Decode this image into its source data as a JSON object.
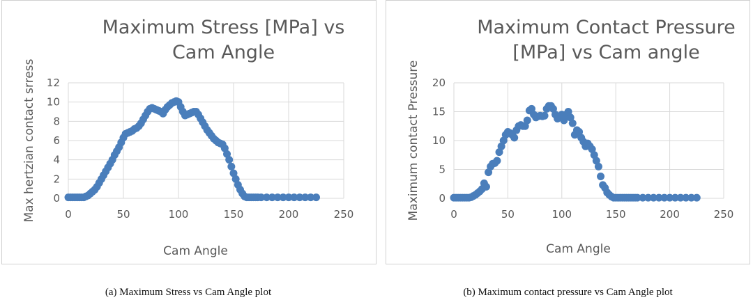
{
  "colors": {
    "marker": "#4a7ebb",
    "grid": "#d9d9d9",
    "text": "#595959"
  },
  "captions": {
    "a": "(a) Maximum Stress vs Cam Angle plot",
    "b": "(b) Maximum contact pressure vs Cam Angle plot"
  },
  "chart_data": [
    {
      "type": "scatter",
      "title": [
        "Maximum Stress [MPa] vs",
        "Cam Angle"
      ],
      "xlabel": "Cam Angle",
      "ylabel": "Max hertzian contact srress",
      "xlim": [
        0,
        250
      ],
      "ylim": [
        0,
        12
      ],
      "xticks": [
        0,
        50,
        100,
        150,
        200,
        250
      ],
      "yticks": [
        0,
        2,
        4,
        6,
        8,
        10,
        12
      ],
      "grid": true,
      "series": [
        {
          "x": [
            0,
            2,
            4,
            6,
            8,
            10,
            12,
            14,
            16,
            18,
            20,
            22,
            24,
            26,
            28,
            30,
            32,
            34,
            36,
            38,
            40,
            42,
            44,
            46,
            48,
            50,
            52,
            54,
            56,
            58,
            60,
            62,
            64,
            66,
            68,
            70,
            72,
            74,
            76,
            78,
            80,
            82,
            84,
            86,
            88,
            90,
            92,
            94,
            96,
            98,
            100,
            102,
            104,
            106,
            108,
            110,
            112,
            114,
            116,
            118,
            120,
            122,
            124,
            126,
            128,
            130,
            132,
            134,
            136,
            138,
            140,
            142,
            144,
            146,
            148,
            150,
            152,
            154,
            156,
            158,
            160,
            162,
            164,
            166,
            168,
            170,
            172,
            175,
            180,
            185,
            190,
            195,
            200,
            205,
            210,
            215,
            220,
            225
          ],
          "y": [
            0.1,
            0.1,
            0.1,
            0.1,
            0.1,
            0.1,
            0.1,
            0.1,
            0.2,
            0.3,
            0.5,
            0.7,
            0.9,
            1.2,
            1.6,
            2.0,
            2.4,
            2.8,
            3.2,
            3.6,
            4.0,
            4.5,
            4.9,
            5.3,
            5.8,
            6.3,
            6.7,
            6.8,
            6.9,
            7.0,
            7.2,
            7.3,
            7.5,
            7.8,
            8.2,
            8.6,
            9.0,
            9.3,
            9.4,
            9.3,
            9.2,
            9.1,
            9.0,
            8.8,
            9.2,
            9.5,
            9.7,
            9.9,
            10.0,
            10.1,
            10.0,
            9.5,
            9.0,
            8.6,
            8.7,
            8.8,
            8.9,
            9.0,
            9.0,
            8.7,
            8.3,
            7.9,
            7.5,
            7.1,
            6.8,
            6.5,
            6.2,
            6.0,
            5.8,
            5.7,
            5.6,
            5.2,
            4.6,
            4.0,
            3.3,
            2.6,
            2.0,
            1.4,
            0.9,
            0.5,
            0.2,
            0.1,
            0.1,
            0.1,
            0.1,
            0.1,
            0.1,
            0.1,
            0.1,
            0.1,
            0.1,
            0.1,
            0.1,
            0.1,
            0.1,
            0.1,
            0.1,
            0.1
          ]
        }
      ]
    },
    {
      "type": "scatter",
      "title": [
        "Maximum Contact Pressure",
        "[MPa] vs Cam angle"
      ],
      "xlabel": "Cam Angle",
      "ylabel": "Maximum contact Pressure",
      "xlim": [
        0,
        250
      ],
      "ylim": [
        0,
        20
      ],
      "xticks": [
        0,
        50,
        100,
        150,
        200,
        250
      ],
      "yticks": [
        0,
        5,
        10,
        15,
        20
      ],
      "grid": true,
      "series": [
        {
          "x": [
            0,
            2,
            4,
            6,
            8,
            10,
            12,
            14,
            16,
            18,
            20,
            22,
            24,
            26,
            28,
            30,
            32,
            34,
            36,
            38,
            40,
            42,
            44,
            46,
            48,
            50,
            52,
            54,
            56,
            58,
            60,
            62,
            64,
            66,
            68,
            70,
            72,
            74,
            76,
            78,
            80,
            82,
            84,
            86,
            88,
            90,
            92,
            94,
            96,
            98,
            100,
            102,
            104,
            106,
            108,
            110,
            112,
            114,
            116,
            118,
            120,
            122,
            124,
            126,
            128,
            130,
            132,
            134,
            136,
            138,
            140,
            142,
            144,
            146,
            148,
            150,
            152,
            154,
            156,
            158,
            160,
            162,
            164,
            166,
            168,
            170,
            175,
            180,
            185,
            190,
            195,
            200,
            205,
            210,
            215,
            220,
            225
          ],
          "y": [
            0.1,
            0.1,
            0.1,
            0.1,
            0.1,
            0.1,
            0.1,
            0.1,
            0.2,
            0.4,
            0.6,
            0.9,
            1.2,
            1.6,
            2.6,
            2.0,
            4.5,
            5.5,
            6.0,
            6.1,
            6.5,
            8.0,
            9.0,
            10.0,
            11.0,
            11.5,
            11.3,
            11.0,
            10.5,
            11.8,
            12.5,
            12.7,
            12.5,
            12.5,
            13.5,
            15.2,
            15.5,
            14.5,
            14.0,
            14.2,
            14.3,
            14.2,
            14.3,
            15.5,
            16.0,
            16.0,
            15.5,
            14.5,
            13.8,
            14.0,
            14.5,
            13.5,
            14.5,
            15.0,
            14.0,
            13.0,
            11.0,
            11.8,
            11.5,
            10.5,
            9.8,
            9.0,
            9.5,
            9.0,
            8.5,
            7.5,
            6.5,
            5.5,
            3.8,
            2.3,
            1.8,
            1.0,
            0.6,
            0.3,
            0.1,
            0.1,
            0.1,
            0.1,
            0.1,
            0.1,
            0.1,
            0.1,
            0.1,
            0.1,
            0.1,
            0.1,
            0.1,
            0.1,
            0.1,
            0.1,
            0.1,
            0.1,
            0.1,
            0.1,
            0.1,
            0.1,
            0.1
          ]
        }
      ]
    }
  ]
}
